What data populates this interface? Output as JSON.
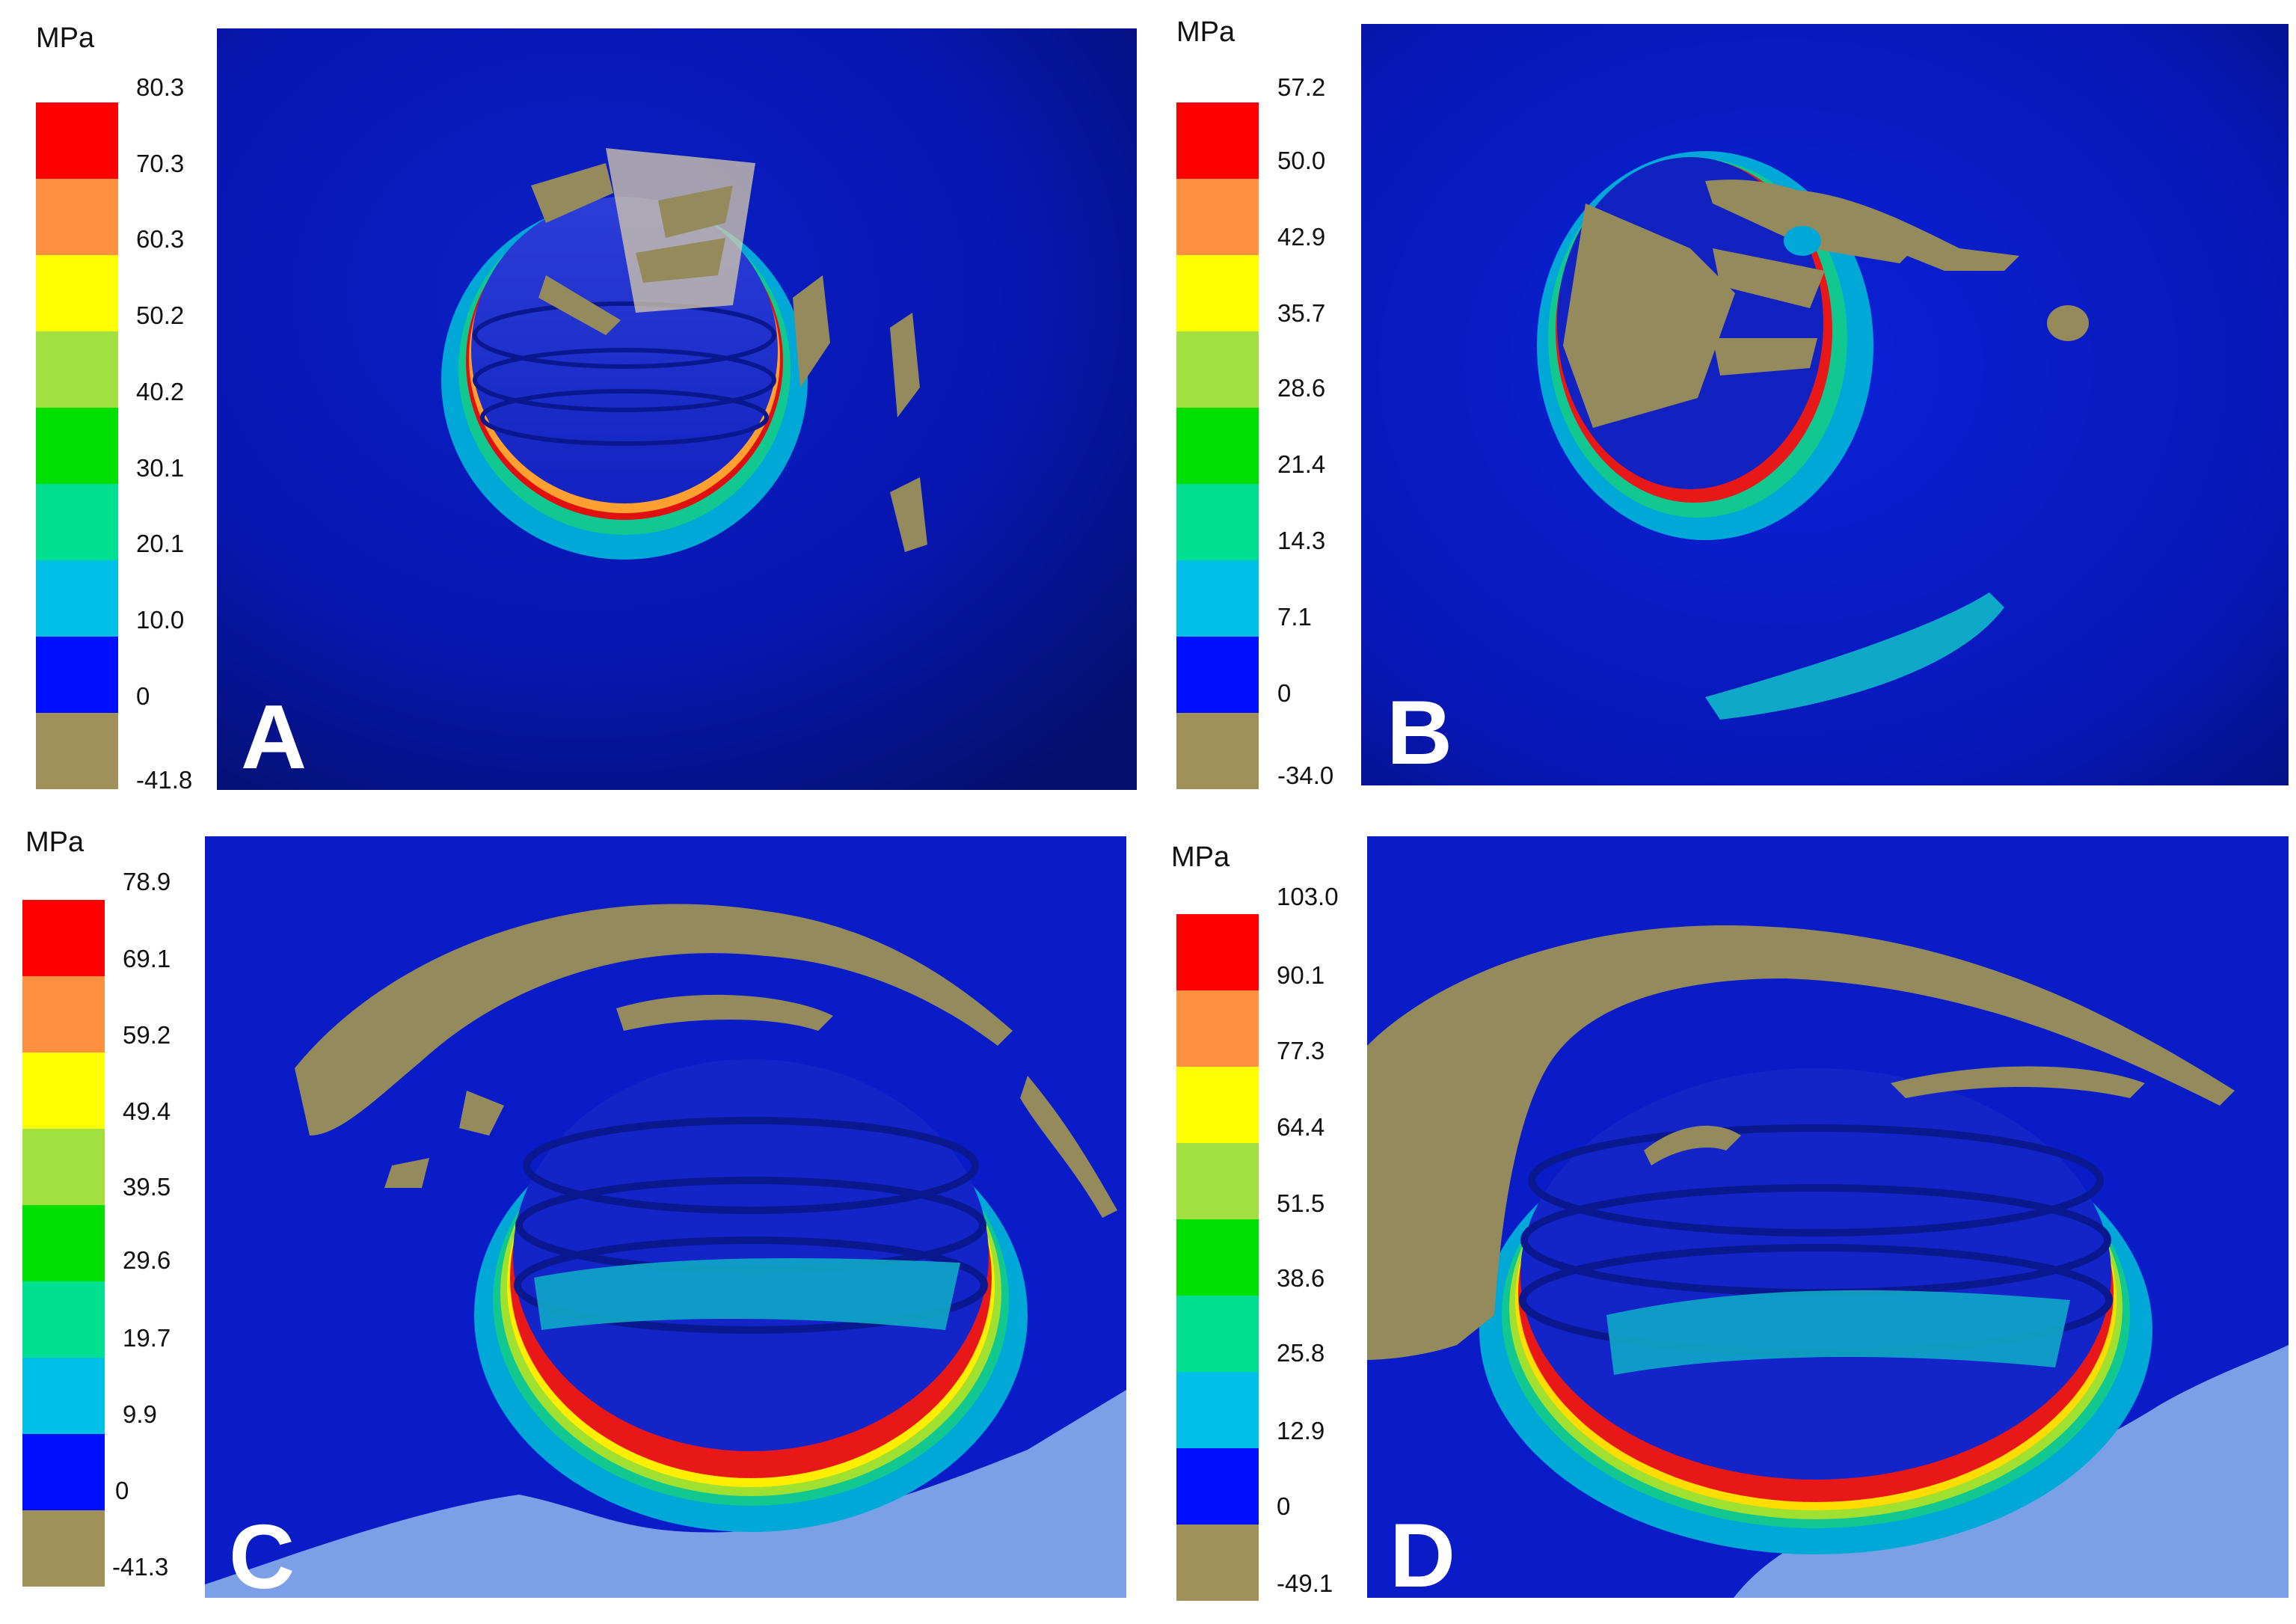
{
  "colors": {
    "legend": [
      "#ff0000",
      "#ff9040",
      "#ffff00",
      "#a0e040",
      "#00e000",
      "#00e090",
      "#00c0e8",
      "#0010ff",
      "#a0905a"
    ],
    "background_blue": "#0a1cc8",
    "compressive": "#948a5c"
  },
  "panels": [
    {
      "unit": "MPa",
      "ticks": [
        "80.3",
        "70.3",
        "60.3",
        "50.2",
        "40.2",
        "30.1",
        "20.1",
        "10.0",
        "0",
        "-41.8"
      ],
      "label": "A"
    },
    {
      "unit": "MPa",
      "ticks": [
        "57.2",
        "50.0",
        "42.9",
        "35.7",
        "28.6",
        "21.4",
        "14.3",
        "7.1",
        "0",
        "-34.0"
      ],
      "label": "B"
    },
    {
      "unit": "MPa",
      "ticks": [
        "78.9",
        "69.1",
        "59.2",
        "49.4",
        "39.5",
        "29.6",
        "19.7",
        "9.9",
        "0",
        "-41.3"
      ],
      "label": "C"
    },
    {
      "unit": "MPa",
      "ticks": [
        "103.0",
        "90.1",
        "77.3",
        "64.4",
        "51.5",
        "38.6",
        "25.8",
        "12.9",
        "0",
        "-49.1"
      ],
      "label": "D"
    }
  ]
}
